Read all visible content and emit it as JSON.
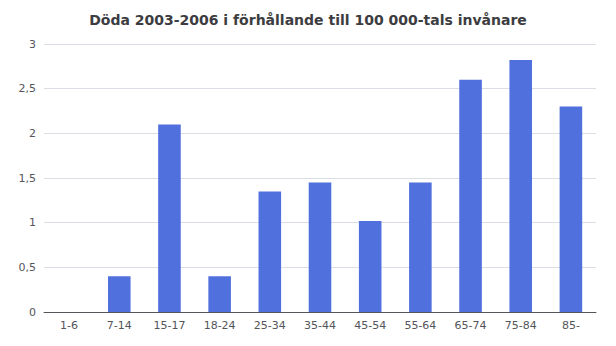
{
  "chart_data": {
    "type": "bar",
    "title": "Döda 2003-2006 i förhållande till 100 000-tals invånare",
    "categories": [
      "1-6",
      "7-14",
      "15-17",
      "18-24",
      "25-34",
      "35-44",
      "45-54",
      "55-64",
      "65-74",
      "75-84",
      "85-"
    ],
    "values": [
      0.0,
      0.4,
      2.1,
      0.4,
      1.35,
      1.45,
      1.02,
      1.45,
      2.6,
      2.82,
      2.3
    ],
    "ylim": [
      0,
      3.0
    ],
    "yticks": [
      0,
      {
        "value": 0.5,
        "label": "0,5"
      },
      1,
      {
        "value": 1.5,
        "label": "1,5"
      },
      2,
      {
        "value": 2.5,
        "label": "2,5"
      },
      3
    ],
    "grid": true
  }
}
